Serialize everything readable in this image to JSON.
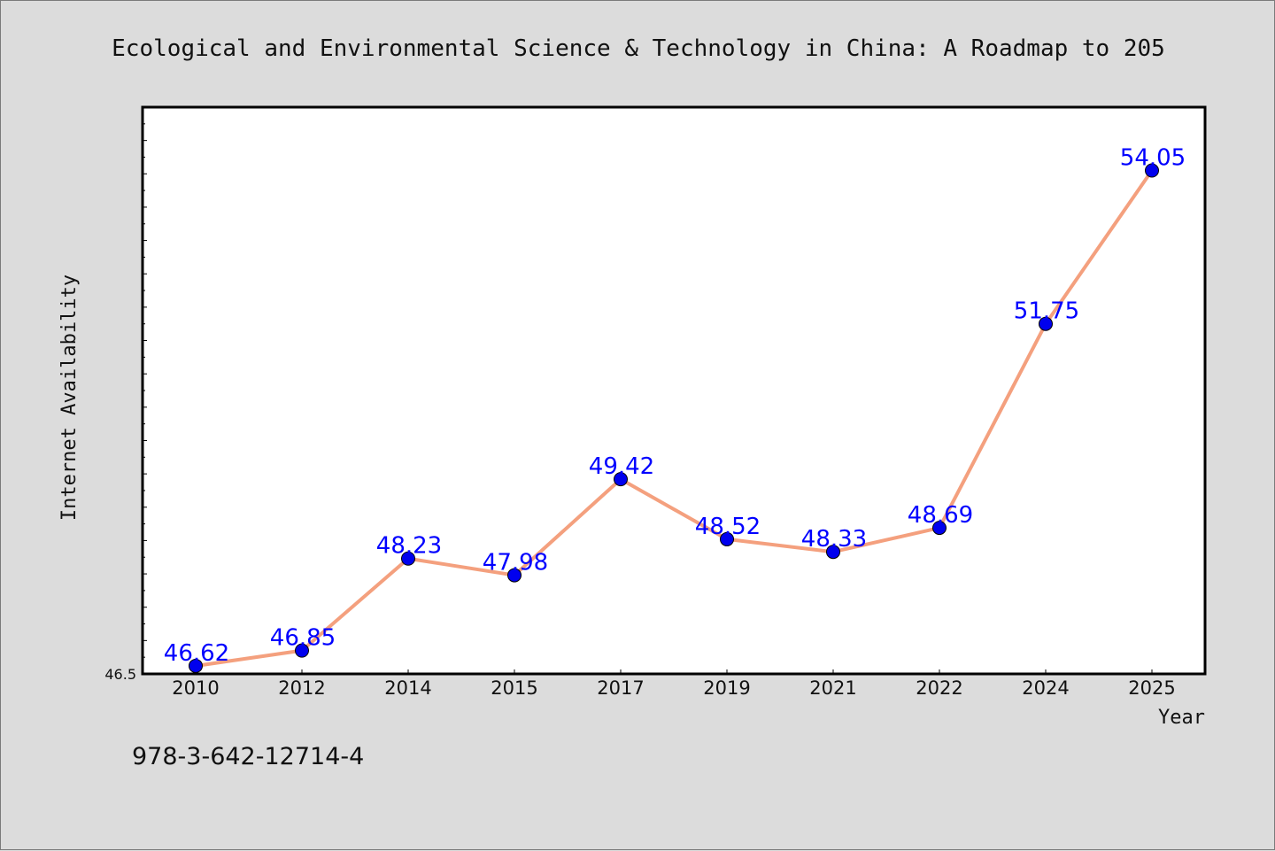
{
  "chart_data": {
    "type": "line",
    "title": "Ecological and Environmental Science & Technology in China: A Roadmap to 205",
    "xlabel": "Year",
    "ylabel": "Internet Availability",
    "categories": [
      "2010",
      "2012",
      "2014",
      "2015",
      "2017",
      "2019",
      "2021",
      "2022",
      "2024",
      "2025"
    ],
    "series": [
      {
        "values": [
          46.62,
          46.85,
          48.23,
          47.98,
          49.42,
          48.52,
          48.33,
          48.69,
          51.75,
          54.05
        ],
        "data_labels": [
          "46.62",
          "46.85",
          "48.23",
          "47.98",
          "49.42",
          "48.52",
          "48.33",
          "48.69",
          "51.75",
          "54.05"
        ],
        "line_color": "#f4a07e",
        "marker_color": "#0000ee"
      }
    ],
    "ylim": [
      46.5,
      55.0
    ],
    "ytick_labels": [
      "46.5"
    ],
    "grid": false,
    "legend": "none"
  },
  "footnote": "978-3-642-12714-4",
  "colors": {
    "background": "#dcdcdc",
    "plot_area": "#ffffff",
    "label_color": "#0000ff"
  }
}
